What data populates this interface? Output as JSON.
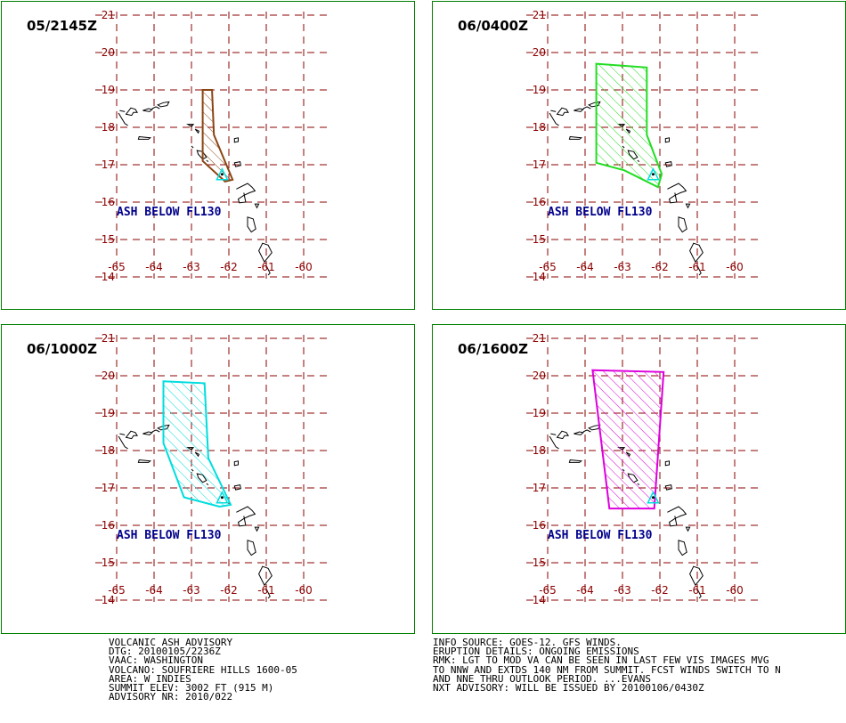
{
  "panels": [
    {
      "title": "05/2145Z",
      "label": "ASH BELOW FL130",
      "color": "#8b4513",
      "polygon": [
        [
          -62.7,
          19.0
        ],
        [
          -62.45,
          19.0
        ],
        [
          -62.4,
          17.8
        ],
        [
          -61.9,
          16.6
        ],
        [
          -62.1,
          16.55
        ],
        [
          -62.7,
          17.1
        ]
      ]
    },
    {
      "title": "06/0400Z",
      "label": "ASH BELOW FL130",
      "color": "#22dd22",
      "polygon": [
        [
          -63.7,
          19.7
        ],
        [
          -62.35,
          19.6
        ],
        [
          -62.35,
          17.8
        ],
        [
          -61.95,
          16.75
        ],
        [
          -62.05,
          16.4
        ],
        [
          -62.95,
          16.85
        ],
        [
          -63.7,
          17.05
        ]
      ]
    },
    {
      "title": "06/1000Z",
      "label": "ASH BELOW FL130",
      "color": "#00dddd",
      "polygon": [
        [
          -63.75,
          19.85
        ],
        [
          -62.65,
          19.8
        ],
        [
          -62.55,
          17.8
        ],
        [
          -61.95,
          16.55
        ],
        [
          -62.25,
          16.5
        ],
        [
          -63.2,
          16.75
        ],
        [
          -63.75,
          18.2
        ]
      ]
    },
    {
      "title": "06/1600Z",
      "label": "ASH BELOW FL130",
      "color": "#dd00dd",
      "polygon": [
        [
          -63.8,
          20.15
        ],
        [
          -61.9,
          20.1
        ],
        [
          -62.15,
          16.45
        ],
        [
          -63.35,
          16.45
        ]
      ]
    }
  ],
  "map": {
    "lon_labels": [
      "-65",
      "-64",
      "-63",
      "-62",
      "-61",
      "-60"
    ],
    "lat_labels": [
      "14",
      "15",
      "16",
      "17",
      "18",
      "19",
      "20",
      "21"
    ],
    "summit": [
      -62.18,
      16.72
    ]
  },
  "advisory_left": [
    "VOLCANIC ASH ADVISORY",
    "DTG: 20100105/2236Z",
    "VAAC: WASHINGTON",
    "VOLCANO: SOUFRIERE HILLS 1600-05",
    "AREA: W_INDIES",
    "SUMMIT ELEV: 3002 FT (915 M)",
    "ADVISORY NR: 2010/022"
  ],
  "advisory_right": [
    "INFO SOURCE: GOES-12. GFS WINDS.",
    "ERUPTION DETAILS: ONGOING EMISSIONS",
    "RMK: LGT TO MOD VA CAN BE SEEN IN LAST FEW VIS IMAGES MVG",
    "TO NNW AND EXTDS 140 NM FROM SUMMIT. FCST WINDS SWITCH TO N",
    "AND NNE THRU OUTLOOK PERIOD. ...EVANS",
    "NXT ADVISORY: WILL BE ISSUED BY 20100106/0430Z"
  ]
}
